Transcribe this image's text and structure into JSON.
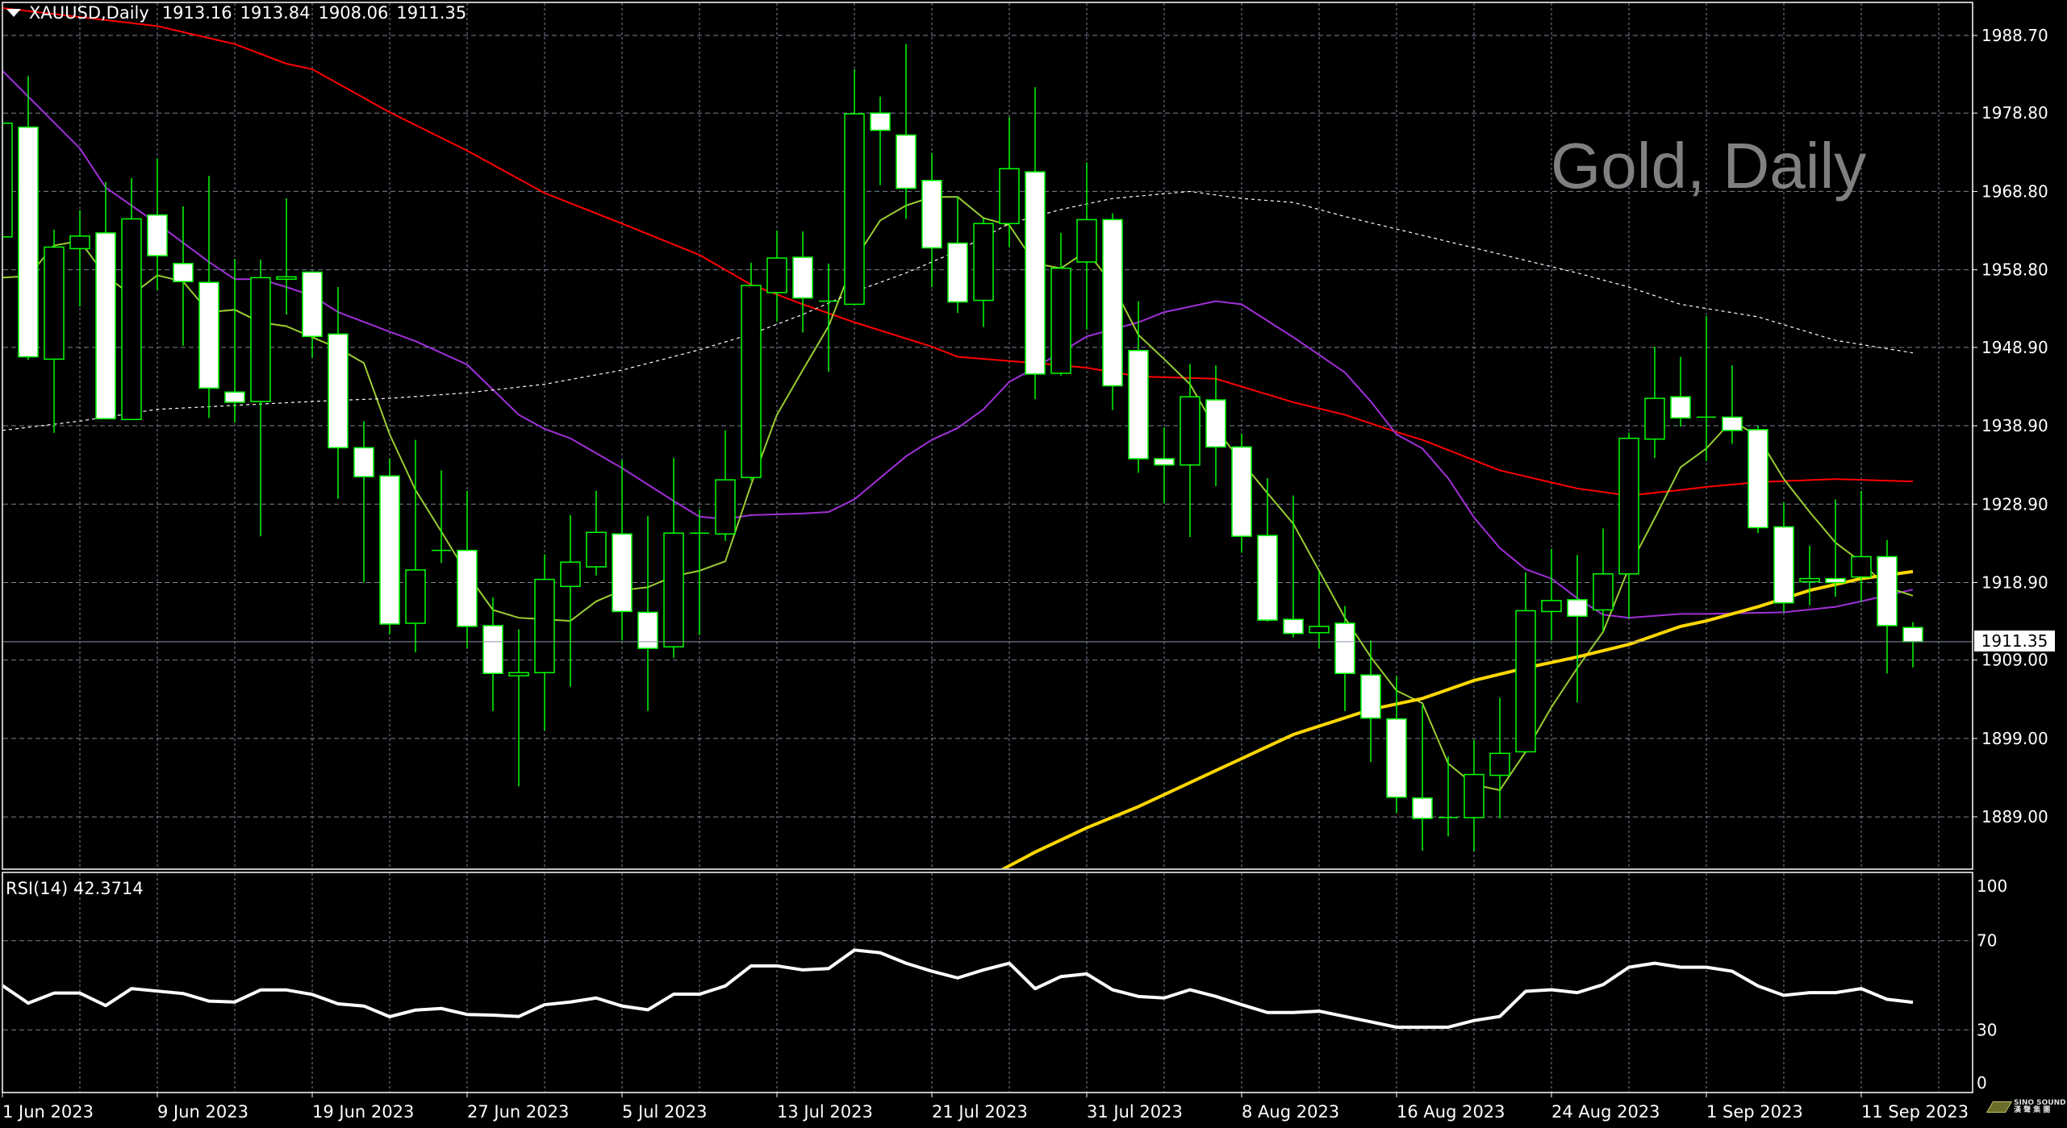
{
  "header": {
    "symbol": "XAUUSD,Daily",
    "open": "1913.16",
    "high": "1913.84",
    "low": "1908.06",
    "close": "1911.35"
  },
  "watermark": "Gold, Daily",
  "current_price_label": "1911.35",
  "rsi_label": "RSI(14) 42.3714",
  "logo": {
    "text_en": "SINO SOUND",
    "text_cn": "漢聲集團"
  },
  "colors": {
    "background": "#000000",
    "candle_outline": "#00ff00",
    "bear_fill": "#ffffff",
    "bull_fill": "#000000",
    "grid": "#7a8596",
    "ma_red": "#ff0000",
    "ma_purple": "#a030d8",
    "ma_lime": "#9acd32",
    "ma_white_dotted": "#ffffff",
    "ma_yellow": "#ffd700",
    "rsi_line": "#ffffff",
    "watermark": "#808080"
  },
  "chart_data": [
    {
      "type": "candlestick",
      "title": "XAUUSD,Daily",
      "ylim": [
        1882.3,
        1992.9
      ],
      "y_ticks": [
        "1988.70",
        "1978.80",
        "1968.80",
        "1958.80",
        "1948.90",
        "1938.90",
        "1928.90",
        "1918.90",
        "1909.00",
        "1899.00",
        "1889.00"
      ],
      "x_labels": [
        "1 Jun 2023",
        "9 Jun 2023",
        "19 Jun 2023",
        "27 Jun 2023",
        "5 Jul 2023",
        "13 Jul 2023",
        "21 Jul 2023",
        "31 Jul 2023",
        "8 Aug 2023",
        "16 Aug 2023",
        "24 Aug 2023",
        "1 Sep 2023",
        "11 Sep 2023"
      ],
      "x_label_every_bars": 6,
      "grid": true,
      "last_price": 1911.35,
      "ohlc": [
        [
          1963.0,
          1983.0,
          1953.2,
          1977.5
        ],
        [
          1977.0,
          1983.5,
          1947.3,
          1947.7
        ],
        [
          1947.4,
          1963.9,
          1938.0,
          1961.7
        ],
        [
          1961.5,
          1966.4,
          1954.1,
          1963.1
        ],
        [
          1963.5,
          1970.0,
          1939.7,
          1939.8
        ],
        [
          1939.7,
          1970.5,
          1939.7,
          1965.3
        ],
        [
          1965.8,
          1973.0,
          1956.2,
          1960.6
        ],
        [
          1959.6,
          1966.9,
          1949.1,
          1957.3
        ],
        [
          1957.2,
          1970.8,
          1939.9,
          1943.7
        ],
        [
          1943.2,
          1960.2,
          1939.3,
          1941.9
        ],
        [
          1942.0,
          1960.1,
          1924.8,
          1957.8
        ],
        [
          1957.6,
          1967.9,
          1953.1,
          1957.9
        ],
        [
          1958.5,
          1958.5,
          1947.6,
          1950.3
        ],
        [
          1950.6,
          1956.6,
          1929.6,
          1936.1
        ],
        [
          1936.1,
          1939.5,
          1918.9,
          1932.4
        ],
        [
          1932.5,
          1934.7,
          1912.3,
          1913.6
        ],
        [
          1913.7,
          1937.1,
          1910.0,
          1920.5
        ],
        [
          1923.0,
          1933.2,
          1921.4,
          1923.0
        ],
        [
          1923.0,
          1930.6,
          1910.5,
          1913.3
        ],
        [
          1913.4,
          1917.0,
          1902.5,
          1907.3
        ],
        [
          1907.0,
          1912.9,
          1892.9,
          1907.4
        ],
        [
          1907.4,
          1922.5,
          1900.0,
          1919.3
        ],
        [
          1918.4,
          1927.5,
          1905.6,
          1921.5
        ],
        [
          1920.9,
          1930.6,
          1919.8,
          1925.3
        ],
        [
          1925.1,
          1934.5,
          1911.5,
          1915.2
        ],
        [
          1915.1,
          1927.4,
          1902.5,
          1910.5
        ],
        [
          1910.7,
          1934.8,
          1909.3,
          1925.2
        ],
        [
          1925.2,
          1928.2,
          1912.2,
          1925.2
        ],
        [
          1925.1,
          1938.3,
          1924.2,
          1932.0
        ],
        [
          1932.3,
          1959.7,
          1931.9,
          1956.8
        ],
        [
          1955.9,
          1963.8,
          1952.2,
          1960.3
        ],
        [
          1960.4,
          1963.7,
          1950.8,
          1955.2
        ],
        [
          1954.8,
          1959.6,
          1945.8,
          1954.8
        ],
        [
          1954.4,
          1984.4,
          1954.4,
          1978.7
        ],
        [
          1978.8,
          1980.9,
          1969.6,
          1976.6
        ],
        [
          1976.0,
          1987.6,
          1965.3,
          1969.2
        ],
        [
          1970.2,
          1973.7,
          1956.6,
          1961.6
        ],
        [
          1962.2,
          1968.1,
          1953.3,
          1954.7
        ],
        [
          1954.9,
          1965.4,
          1951.5,
          1964.7
        ],
        [
          1964.7,
          1978.3,
          1961.7,
          1971.7
        ],
        [
          1971.3,
          1982.1,
          1942.3,
          1945.5
        ],
        [
          1945.6,
          1963.5,
          1945.3,
          1959.0
        ],
        [
          1959.8,
          1972.5,
          1951.2,
          1965.2
        ],
        [
          1965.2,
          1966.0,
          1940.9,
          1944.0
        ],
        [
          1948.5,
          1954.8,
          1932.9,
          1934.7
        ],
        [
          1934.7,
          1938.7,
          1929.0,
          1933.9
        ],
        [
          1933.9,
          1946.8,
          1924.7,
          1942.6
        ],
        [
          1942.2,
          1946.6,
          1931.2,
          1936.2
        ],
        [
          1936.2,
          1937.9,
          1922.7,
          1924.8
        ],
        [
          1924.9,
          1932.2,
          1913.9,
          1914.1
        ],
        [
          1914.2,
          1930.0,
          1911.9,
          1912.4
        ],
        [
          1912.5,
          1920.3,
          1910.5,
          1913.3
        ],
        [
          1913.7,
          1915.9,
          1902.5,
          1907.3
        ],
        [
          1907.1,
          1911.5,
          1896.0,
          1901.6
        ],
        [
          1901.5,
          1907.0,
          1889.5,
          1891.5
        ],
        [
          1891.4,
          1903.2,
          1884.7,
          1888.8
        ],
        [
          1888.9,
          1896.7,
          1886.5,
          1888.9
        ],
        [
          1888.9,
          1898.8,
          1884.6,
          1894.4
        ],
        [
          1894.3,
          1904.2,
          1888.8,
          1897.1
        ],
        [
          1897.3,
          1920.2,
          1897.3,
          1915.3
        ],
        [
          1915.2,
          1923.2,
          1911.5,
          1916.6
        ],
        [
          1916.7,
          1922.4,
          1903.6,
          1914.6
        ],
        [
          1915.4,
          1925.8,
          1912.7,
          1920.0
        ],
        [
          1920.0,
          1938.0,
          1914.3,
          1937.3
        ],
        [
          1937.2,
          1949.0,
          1934.8,
          1942.4
        ],
        [
          1942.6,
          1947.7,
          1938.8,
          1939.9
        ],
        [
          1940.0,
          1952.9,
          1934.4,
          1940.0
        ],
        [
          1940.0,
          1946.6,
          1936.6,
          1938.3
        ],
        [
          1938.4,
          1938.9,
          1925.2,
          1925.9
        ],
        [
          1926.0,
          1929.1,
          1915.1,
          1916.3
        ],
        [
          1919.0,
          1923.6,
          1916.0,
          1919.4
        ],
        [
          1919.4,
          1929.5,
          1917.1,
          1918.9
        ],
        [
          1919.6,
          1930.6,
          1916.4,
          1922.2
        ],
        [
          1922.2,
          1924.3,
          1907.3,
          1913.4
        ],
        [
          1913.16,
          1913.84,
          1908.06,
          1911.35
        ]
      ],
      "moving_averages": [
        {
          "color_key": "ma_red",
          "style": "solid",
          "values": [
            1992.2,
            null,
            null,
            null,
            null,
            null,
            1989.9,
            null,
            null,
            1987.6,
            null,
            1985.1,
            1984.4,
            null,
            null,
            1978.9,
            null,
            null,
            1974.0,
            null,
            null,
            1968.6,
            null,
            null,
            1964.7,
            null,
            null,
            1960.7,
            null,
            1956.9,
            null,
            1954.4,
            null,
            1952.1,
            null,
            null,
            1949.0,
            1947.7,
            null,
            null,
            1946.9,
            null,
            1946.3,
            null,
            1945.2,
            null,
            null,
            1944.9,
            null,
            null,
            1941.9,
            null,
            1940.3,
            null,
            1938.1,
            1937.1,
            null,
            null,
            1933.2,
            null,
            null,
            1930.9,
            null,
            1930.0,
            null,
            1930.7,
            1931.1,
            null,
            1931.7,
            null,
            null,
            1932.1,
            null,
            null,
            1931.8
          ]
        },
        {
          "color_key": "ma_purple",
          "style": "solid",
          "values": [
            1984.2,
            null,
            null,
            1974.3,
            1969.3,
            null,
            1964.7,
            null,
            1959.8,
            1957.6,
            1957.6,
            1956.6,
            1955.5,
            1953.4,
            null,
            1950.9,
            1949.7,
            null,
            1946.7,
            null,
            1940.3,
            1938.5,
            1937.3,
            null,
            1933.5,
            null,
            1929.3,
            1927.3,
            1927.0,
            1927.5,
            null,
            1927.7,
            1927.9,
            1929.5,
            null,
            1935.0,
            1937.1,
            1938.6,
            1941.0,
            1944.5,
            1946.3,
            null,
            1950.3,
            null,
            1952.1,
            1953.4,
            null,
            1954.8,
            1954.4,
            null,
            1950.2,
            null,
            1945.7,
            1942.0,
            1937.8,
            1936.0,
            1932.2,
            1927.2,
            1923.3,
            1920.6,
            1919.4,
            1916.9,
            1914.8,
            1914.4,
            null,
            1914.9,
            1914.9,
            null,
            null,
            1915.1,
            null,
            1915.8,
            1916.5,
            null,
            1918.0
          ]
        },
        {
          "color_key": "ma_lime",
          "style": "solid",
          "values": [
            1957.8,
            1958.0,
            1961.9,
            1962.5,
            1958.0,
            1955.6,
            1958.1,
            1957.3,
            1953.4,
            1953.7,
            1952.1,
            1951.6,
            1950.2,
            1948.8,
            1946.9,
            1937.8,
            1930.7,
            1925.4,
            1920.0,
            1915.4,
            1914.4,
            1914.2,
            1914.0,
            1916.5,
            1917.9,
            1918.3,
            1919.7,
            1920.4,
            1921.6,
            1931.4,
            1940.3,
            1946.0,
            1951.6,
            1960.0,
            1965.1,
            1967.0,
            1968.1,
            1968.1,
            1965.4,
            1964.5,
            1959.6,
            1959.0,
            1961.2,
            1956.9,
            1950.5,
            1947.4,
            1944.2,
            1938.5,
            1934.3,
            1930.3,
            1926.4,
            1920.4,
            1914.4,
            1909.4,
            1905.1,
            1903.5,
            1895.8,
            1893.1,
            1892.4,
            1897.3,
            1903.0,
            1908.0,
            1912.6,
            1920.8,
            1927.1,
            1933.6,
            1936.0,
            1939.6,
            1937.5,
            1932.1,
            1927.9,
            1924.0,
            1921.5,
            1918.3,
            1917.2
          ]
        },
        {
          "color_key": "ma_white_dotted",
          "style": "dotted",
          "values": [
            1938.3,
            null,
            null,
            1939.5,
            null,
            null,
            1941.0,
            null,
            null,
            1941.5,
            null,
            null,
            1942.0,
            null,
            null,
            1942.4,
            null,
            null,
            1943.1,
            null,
            null,
            1944.2,
            null,
            null,
            1946.0,
            null,
            null,
            1948.6,
            null,
            1950.6,
            null,
            1953.1,
            null,
            1956.0,
            null,
            1958.4,
            null,
            1961.2,
            null,
            1964.7,
            null,
            1966.5,
            null,
            1967.9,
            null,
            null,
            1968.8,
            null,
            1967.9,
            null,
            1967.4,
            null,
            1965.6,
            null,
            1964.0,
            null,
            null,
            null,
            1960.8,
            null,
            null,
            1958.4,
            null,
            1956.6,
            null,
            1954.4,
            null,
            null,
            1952.8,
            null,
            null,
            1949.8,
            null,
            null,
            1948.2
          ]
        },
        {
          "color_key": "ma_yellow",
          "style": "thick",
          "values": [
            null,
            null,
            null,
            null,
            null,
            null,
            null,
            null,
            null,
            null,
            null,
            null,
            null,
            null,
            null,
            null,
            null,
            null,
            null,
            null,
            null,
            null,
            null,
            null,
            null,
            null,
            null,
            null,
            null,
            null,
            null,
            null,
            null,
            null,
            null,
            null,
            null,
            null,
            1881.0,
            null,
            1884.5,
            null,
            1887.6,
            null,
            1890.3,
            null,
            null,
            1894.9,
            null,
            null,
            1899.5,
            null,
            null,
            1902.7,
            null,
            1904.1,
            null,
            1906.4,
            null,
            1908.0,
            null,
            1909.4,
            null,
            1911.0,
            null,
            1913.3,
            1914.0,
            null,
            1915.8,
            null,
            1917.9,
            null,
            1919.4,
            null,
            1920.3
          ]
        }
      ]
    },
    {
      "type": "line",
      "title": "RSI(14) 42.3714",
      "ylim": [
        0,
        100
      ],
      "y_ticks": [
        "100",
        "70",
        "30",
        "0"
      ],
      "grid_levels": [
        70,
        30
      ],
      "values": [
        49.9,
        42.0,
        46.5,
        46.5,
        40.9,
        48.5,
        47.4,
        46.3,
        42.9,
        42.5,
        47.9,
        47.9,
        45.9,
        41.7,
        40.7,
        35.9,
        38.9,
        39.6,
        36.9,
        36.6,
        36.0,
        41.3,
        42.5,
        44.3,
        40.7,
        39.0,
        46.0,
        46.0,
        49.7,
        58.7,
        58.7,
        56.9,
        57.5,
        65.8,
        64.6,
        59.9,
        56.3,
        53.3,
        56.9,
        59.9,
        48.5,
        53.9,
        55.1,
        48.0,
        45.0,
        44.3,
        48.0,
        45.0,
        41.3,
        37.8,
        37.8,
        38.4,
        36.0,
        33.6,
        31.2,
        31.2,
        31.2,
        34.2,
        36.0,
        47.3,
        48.0,
        46.7,
        50.3,
        58.1,
        59.9,
        58.1,
        58.1,
        56.3,
        49.7,
        45.5,
        46.7,
        46.7,
        48.5,
        43.7,
        42.37
      ]
    }
  ]
}
